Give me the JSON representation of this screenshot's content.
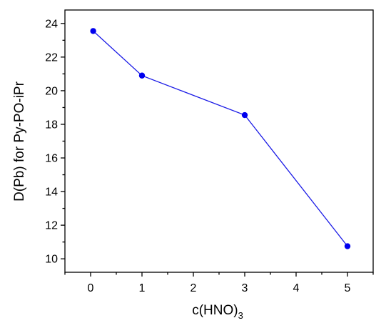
{
  "chart_data": {
    "type": "line",
    "xlabel_main": "c(HNO)",
    "xlabel_sub": "3",
    "ylabel": "D(Pb) for Py-PO-iPr",
    "xlim": [
      -0.5,
      5.5
    ],
    "ylim": [
      9.2,
      24.8
    ],
    "x_ticks": [
      "0",
      "1",
      "2",
      "3",
      "4",
      "5"
    ],
    "y_ticks": [
      "10",
      "12",
      "14",
      "16",
      "18",
      "20",
      "22",
      "24"
    ],
    "grid": false,
    "series": [
      {
        "color": "#0000ee",
        "x": [
          0.05,
          1,
          3,
          5
        ],
        "y": [
          23.55,
          20.9,
          18.55,
          10.75
        ]
      }
    ]
  }
}
